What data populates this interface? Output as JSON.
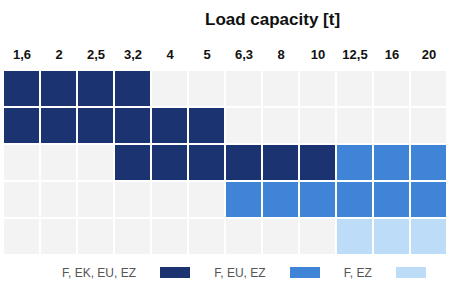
{
  "chart_data": {
    "type": "heatmap",
    "title": "Load capacity [t]",
    "categories": [
      "1,6",
      "2",
      "2,5",
      "3,2",
      "4",
      "5",
      "6,3",
      "8",
      "10",
      "12,5",
      "16",
      "20"
    ],
    "rows": [
      null,
      null,
      null,
      null,
      null
    ],
    "series": [
      {
        "name": "F, EK, EU, EZ",
        "color": "#1b3370"
      },
      {
        "name": "F, EU, EZ",
        "color": "#3f84d6"
      },
      {
        "name": "F, EZ",
        "color": "#bcdcf8"
      }
    ],
    "cells": [
      [
        "F, EK, EU, EZ",
        "F, EK, EU, EZ",
        "F, EK, EU, EZ",
        "F, EK, EU, EZ",
        null,
        null,
        null,
        null,
        null,
        null,
        null,
        null
      ],
      [
        "F, EK, EU, EZ",
        "F, EK, EU, EZ",
        "F, EK, EU, EZ",
        "F, EK, EU, EZ",
        "F, EK, EU, EZ",
        "F, EK, EU, EZ",
        null,
        null,
        null,
        null,
        null,
        null
      ],
      [
        null,
        null,
        null,
        "F, EK, EU, EZ",
        "F, EK, EU, EZ",
        "F, EK, EU, EZ",
        "F, EK, EU, EZ",
        "F, EK, EU, EZ",
        "F, EK, EU, EZ",
        "F, EU, EZ",
        "F, EU, EZ",
        "F, EU, EZ"
      ],
      [
        null,
        null,
        null,
        null,
        null,
        null,
        "F, EU, EZ",
        "F, EU, EZ",
        "F, EU, EZ",
        "F, EU, EZ",
        "F, EU, EZ",
        "F, EU, EZ"
      ],
      [
        null,
        null,
        null,
        null,
        null,
        null,
        null,
        null,
        null,
        "F, EZ",
        "F, EZ",
        "F, EZ"
      ]
    ],
    "legend": "bottom"
  }
}
